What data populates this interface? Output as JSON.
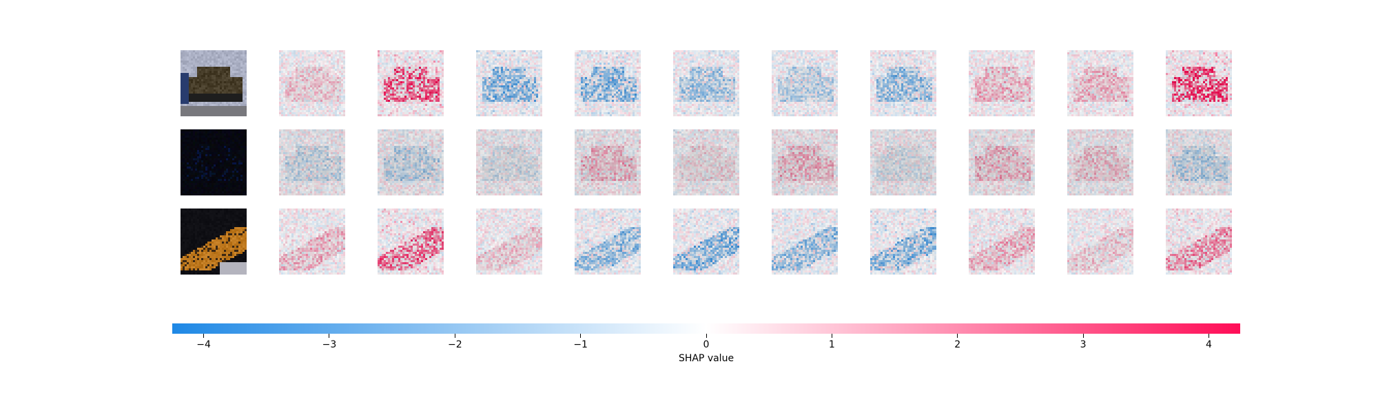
{
  "chart_data": {
    "type": "heatmap",
    "description_rows": 3,
    "columns": 11,
    "rows": [
      {
        "image": "car-photo-street",
        "shap_dominance": [
          0.2,
          0.8,
          -0.6,
          -0.6,
          -0.4,
          -0.3,
          -0.5,
          0.3,
          0.3,
          0.9
        ]
      },
      {
        "image": "dark-car-photo",
        "shap_dominance": [
          -0.2,
          -0.3,
          -0.1,
          0.3,
          0.1,
          0.3,
          -0.1,
          0.3,
          0.2,
          -0.3
        ]
      },
      {
        "image": "orange-car-photo",
        "shap_dominance": [
          0.3,
          0.7,
          0.2,
          -0.5,
          -0.6,
          -0.5,
          -0.6,
          0.3,
          0.2,
          0.5
        ]
      }
    ],
    "colorbar": {
      "label": "SHAP value",
      "min": -4.25,
      "max": 4.25,
      "ticks": [
        "−4",
        "−3",
        "−2",
        "−1",
        "0",
        "1",
        "2",
        "3",
        "4"
      ],
      "tick_values": [
        -4,
        -3,
        -2,
        -1,
        0,
        1,
        2,
        3,
        4
      ],
      "color_negative": "#1e88e5",
      "color_zero": "#ffffff",
      "color_positive": "#ff0d57"
    }
  }
}
